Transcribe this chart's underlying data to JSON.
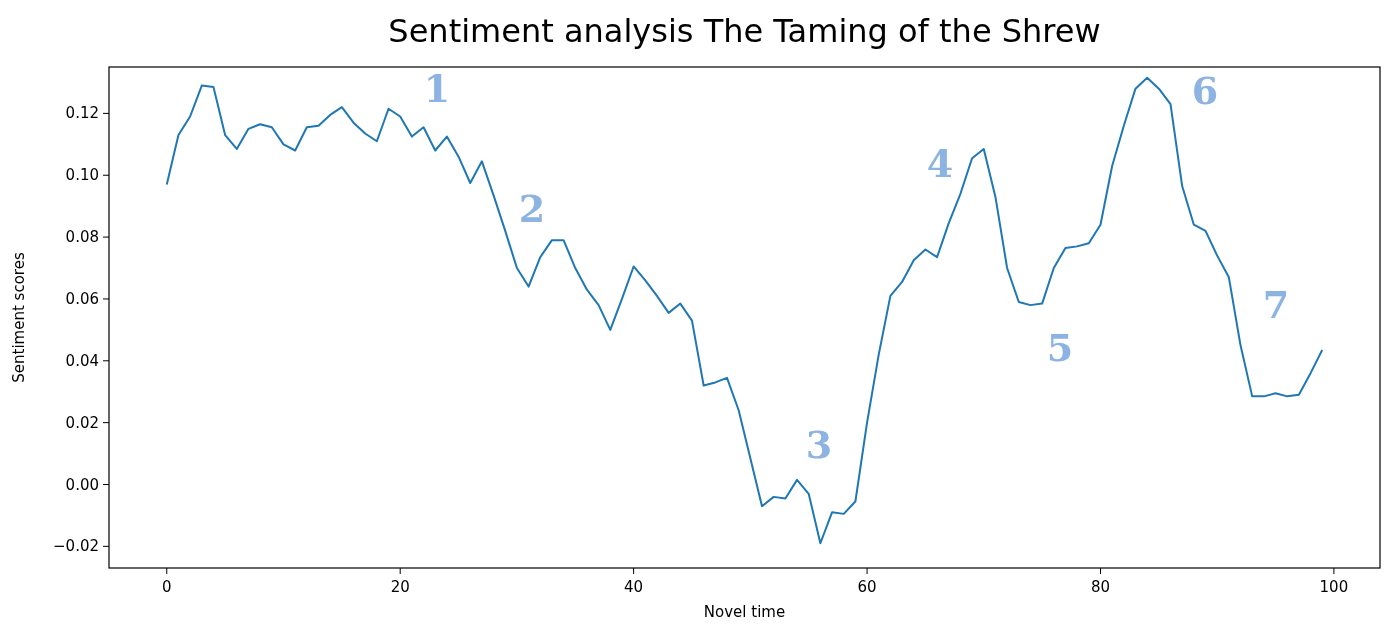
{
  "chart_data": {
    "type": "line",
    "title": "Sentiment analysis The Taming of the Shrew",
    "xlabel": "Novel time",
    "ylabel": "Sentiment scores",
    "x": [
      0,
      1,
      2,
      3,
      4,
      5,
      6,
      7,
      8,
      9,
      10,
      11,
      12,
      13,
      14,
      15,
      16,
      17,
      18,
      19,
      20,
      21,
      22,
      23,
      24,
      25,
      26,
      27,
      28,
      29,
      30,
      31,
      32,
      33,
      34,
      35,
      36,
      37,
      38,
      39,
      40,
      41,
      42,
      43,
      44,
      45,
      46,
      47,
      48,
      49,
      50,
      51,
      52,
      53,
      54,
      55,
      56,
      57,
      58,
      59,
      60,
      61,
      62,
      63,
      64,
      65,
      66,
      67,
      68,
      69,
      70,
      71,
      72,
      73,
      74,
      75,
      76,
      77,
      78,
      79,
      80,
      81,
      82,
      83,
      84,
      85,
      86,
      87,
      88,
      89,
      90,
      91,
      92,
      93,
      94,
      95,
      96,
      97,
      98,
      99
    ],
    "series": [
      {
        "color": "#1f77b4",
        "values": [
          0.097,
          0.113,
          0.119,
          0.129,
          0.1285,
          0.113,
          0.1085,
          0.115,
          0.1165,
          0.1155,
          0.11,
          0.108,
          0.1155,
          0.116,
          0.1195,
          0.122,
          0.117,
          0.1135,
          0.111,
          0.1215,
          0.119,
          0.1125,
          0.1155,
          0.108,
          0.1125,
          0.106,
          0.0975,
          0.1045,
          0.0935,
          0.082,
          0.07,
          0.064,
          0.0735,
          0.079,
          0.079,
          0.07,
          0.063,
          0.058,
          0.05,
          0.06,
          0.0705,
          0.066,
          0.061,
          0.0555,
          0.0585,
          0.053,
          0.032,
          0.033,
          0.0345,
          0.024,
          0.0085,
          -0.007,
          -0.004,
          -0.0045,
          0.0015,
          -0.003,
          -0.019,
          -0.009,
          -0.0095,
          -0.0055,
          0.02,
          0.042,
          0.061,
          0.0655,
          0.0725,
          0.076,
          0.0735,
          0.0845,
          0.094,
          0.1055,
          0.1085,
          0.093,
          0.07,
          0.059,
          0.058,
          0.0585,
          0.07,
          0.0765,
          0.077,
          0.078,
          0.084,
          0.103,
          0.116,
          0.128,
          0.1315,
          0.128,
          0.123,
          0.0965,
          0.084,
          0.082,
          0.074,
          0.067,
          0.045,
          0.0285,
          0.0285,
          0.0295,
          0.0285,
          0.029,
          0.036,
          0.0435
        ]
      }
    ],
    "xlim": [
      -4.95,
      103.95
    ],
    "ylim": [
      -0.027,
      0.135
    ],
    "xticks": [
      0,
      20,
      40,
      60,
      80,
      100
    ],
    "yticks": [
      {
        "value": -0.02,
        "label": "−0.02"
      },
      {
        "value": 0,
        "label": "0.00"
      },
      {
        "value": 0.02,
        "label": "0.02"
      },
      {
        "value": 0.04,
        "label": "0.04"
      },
      {
        "value": 0.06,
        "label": "0.06"
      },
      {
        "value": 0.08,
        "label": "0.08"
      },
      {
        "value": 0.1,
        "label": "0.10"
      },
      {
        "value": 0.12,
        "label": "0.12"
      }
    ],
    "annotations": [
      "1",
      "2",
      "3",
      "4",
      "5",
      "6",
      "7"
    ],
    "grid": false
  }
}
